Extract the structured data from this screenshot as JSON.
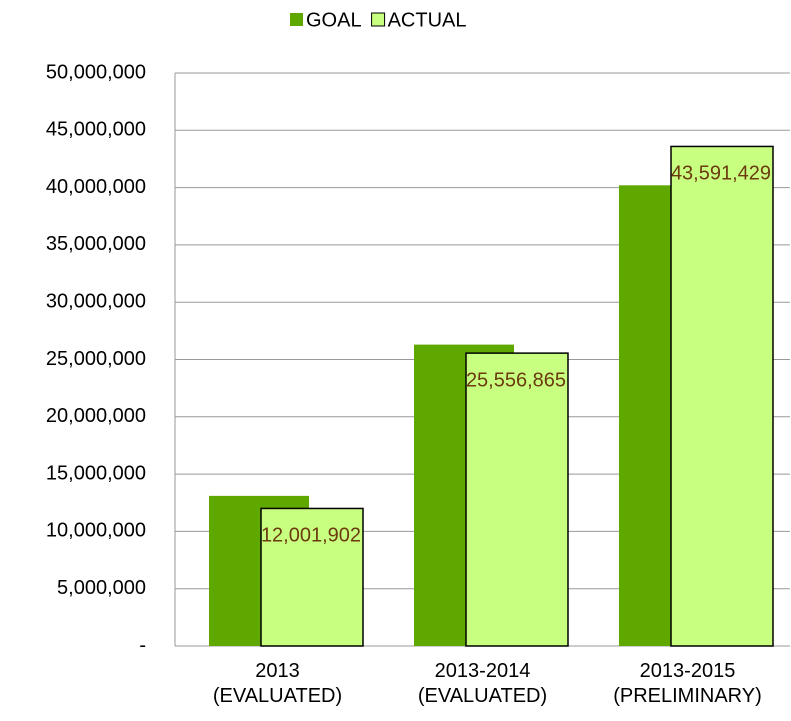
{
  "chart_data": {
    "type": "bar",
    "categories": [
      "2013 (EVALUATED)",
      "2013-2014 (EVALUATED)",
      "2013-2015 (PRELIMINARY)"
    ],
    "series": [
      {
        "name": "GOAL",
        "color": "#5fa800",
        "values": [
          13100000,
          26300000,
          40200000
        ]
      },
      {
        "name": "ACTUAL",
        "color": "#c8ff80",
        "values": [
          12001902,
          25556865,
          43591429
        ],
        "value_labels": [
          "12,001,902",
          "25,556,865",
          "43,591,429"
        ]
      }
    ],
    "ylim": [
      0,
      50000000
    ],
    "yticks": [
      {
        "value": 0,
        "label": "-"
      },
      {
        "value": 5000000,
        "label": "5,000,000"
      },
      {
        "value": 10000000,
        "label": "10,000,000"
      },
      {
        "value": 15000000,
        "label": "15,000,000"
      },
      {
        "value": 20000000,
        "label": "20,000,000"
      },
      {
        "value": 25000000,
        "label": "25,000,000"
      },
      {
        "value": 30000000,
        "label": "30,000,000"
      },
      {
        "value": 35000000,
        "label": "35,000,000"
      },
      {
        "value": 40000000,
        "label": "40,000,000"
      },
      {
        "value": 45000000,
        "label": "45,000,000"
      },
      {
        "value": 50000000,
        "label": "50,000,000"
      }
    ],
    "grid": true,
    "legend": "top"
  }
}
